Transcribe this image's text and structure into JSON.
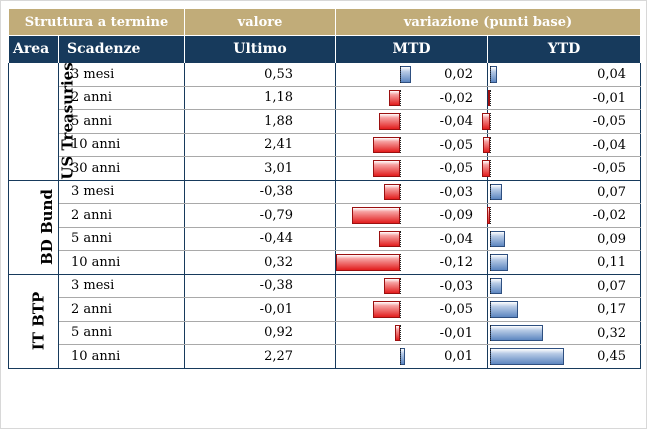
{
  "header": {
    "group1": "Struttura a termine",
    "group2": "valore",
    "group3": "variazione (punti base)",
    "col_area": "Area",
    "col_scadenze": "Scadenze",
    "col_ultimo": "Ultimo",
    "col_mtd": "MTD",
    "col_ytd": "YTD"
  },
  "colors": {
    "header_top": "#c1ac79",
    "header_bottom": "#173a5c",
    "negative_bar": "#e21d1d",
    "positive_bar": "#5d86c0"
  },
  "groups": [
    {
      "area": "US Treasuries",
      "rows": [
        {
          "maturity": "3 mesi",
          "last": "0,53",
          "mtd": "0,02",
          "ytd": "0,04",
          "mtd_v": 0.02,
          "ytd_v": 0.04
        },
        {
          "maturity": "2 anni",
          "last": "1,18",
          "mtd": "-0,02",
          "ytd": "-0,01",
          "mtd_v": -0.02,
          "ytd_v": -0.01
        },
        {
          "maturity": "5 anni",
          "last": "1,88",
          "mtd": "-0,04",
          "ytd": "-0,05",
          "mtd_v": -0.04,
          "ytd_v": -0.05
        },
        {
          "maturity": "10 anni",
          "last": "2,41",
          "mtd": "-0,05",
          "ytd": "-0,04",
          "mtd_v": -0.05,
          "ytd_v": -0.04
        },
        {
          "maturity": "30 anni",
          "last": "3,01",
          "mtd": "-0,05",
          "ytd": "-0,05",
          "mtd_v": -0.05,
          "ytd_v": -0.05
        }
      ]
    },
    {
      "area": "BD Bund",
      "rows": [
        {
          "maturity": "3 mesi",
          "last": "-0,38",
          "mtd": "-0,03",
          "ytd": "0,07",
          "mtd_v": -0.03,
          "ytd_v": 0.07
        },
        {
          "maturity": "2 anni",
          "last": "-0,79",
          "mtd": "-0,09",
          "ytd": "-0,02",
          "mtd_v": -0.09,
          "ytd_v": -0.02
        },
        {
          "maturity": "5 anni",
          "last": "-0,44",
          "mtd": "-0,04",
          "ytd": "0,09",
          "mtd_v": -0.04,
          "ytd_v": 0.09
        },
        {
          "maturity": "10 anni",
          "last": "0,32",
          "mtd": "-0,12",
          "ytd": "0,11",
          "mtd_v": -0.12,
          "ytd_v": 0.11
        }
      ]
    },
    {
      "area": "IT BTP",
      "rows": [
        {
          "maturity": "3 mesi",
          "last": "-0,38",
          "mtd": "-0,03",
          "ytd": "0,07",
          "mtd_v": -0.03,
          "ytd_v": 0.07
        },
        {
          "maturity": "2 anni",
          "last": "-0,01",
          "mtd": "-0,05",
          "ytd": "0,17",
          "mtd_v": -0.05,
          "ytd_v": 0.17
        },
        {
          "maturity": "5 anni",
          "last": "0,92",
          "mtd": "-0,01",
          "ytd": "0,32",
          "mtd_v": -0.01,
          "ytd_v": 0.32
        },
        {
          "maturity": "10 anni",
          "last": "2,27",
          "mtd": "0,01",
          "ytd": "0,45",
          "mtd_v": 0.01,
          "ytd_v": 0.45
        }
      ]
    }
  ]
}
